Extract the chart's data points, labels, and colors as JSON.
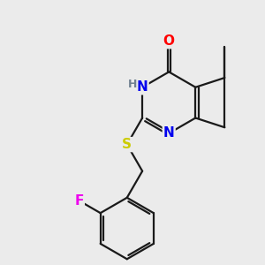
{
  "bg_color": "#ebebeb",
  "bond_color": "#1a1a1a",
  "atom_colors": {
    "O": "#ff0000",
    "N": "#0000ee",
    "S": "#cccc00",
    "F": "#ee00ee",
    "C": "#1a1a1a"
  },
  "line_width": 1.6,
  "figsize": [
    3.0,
    3.0
  ],
  "dpi": 100
}
